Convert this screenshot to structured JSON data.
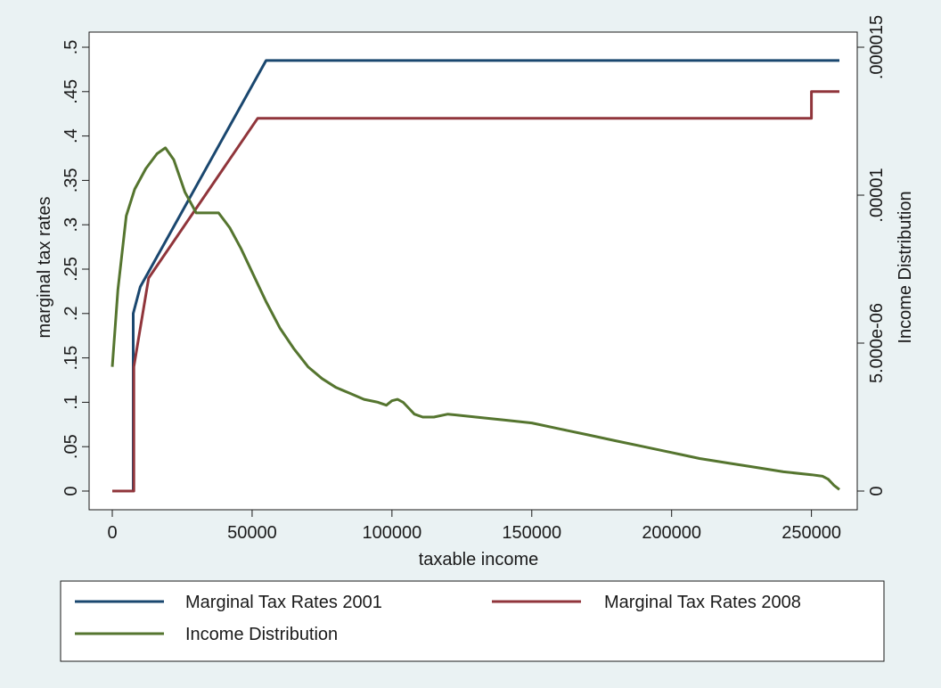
{
  "chart_data": {
    "type": "line",
    "title": "",
    "xlabel": "taxable income",
    "ylabel": "marginal tax rates",
    "y2label": "Income Distribution",
    "xlim": [
      0,
      260000
    ],
    "ylim": [
      0,
      0.5
    ],
    "y2lim": [
      0,
      1.5e-05
    ],
    "x_ticks": [
      0,
      50000,
      100000,
      150000,
      200000,
      250000
    ],
    "x_tick_labels": [
      "0",
      "50000",
      "100000",
      "150000",
      "200000",
      "250000"
    ],
    "y_ticks": [
      0,
      0.05,
      0.1,
      0.15,
      0.2,
      0.25,
      0.3,
      0.35,
      0.4,
      0.45,
      0.5
    ],
    "y_tick_labels": [
      "0",
      ".05",
      ".1",
      ".15",
      ".2",
      ".25",
      ".3",
      ".35",
      ".4",
      ".45",
      ".5"
    ],
    "y2_ticks": [
      0,
      5e-06,
      1e-05,
      1.5e-05
    ],
    "y2_tick_labels": [
      "0",
      "5.000e-06",
      ".00001",
      ".000015"
    ],
    "grid": false,
    "legend_position": "bottom",
    "series": [
      {
        "name": "Marginal Tax Rates 2001",
        "axis": "left",
        "color": "#1a476f",
        "x": [
          0,
          7500,
          7500,
          10000,
          55000,
          260000
        ],
        "y": [
          0,
          0,
          0.2,
          0.23,
          0.485,
          0.485
        ]
      },
      {
        "name": "Marginal Tax Rates 2008",
        "axis": "left",
        "color": "#90353b",
        "x": [
          0,
          7700,
          7700,
          13000,
          52000,
          250000,
          250000,
          260000
        ],
        "y": [
          0,
          0,
          0.14,
          0.24,
          0.42,
          0.42,
          0.45,
          0.45
        ]
      },
      {
        "name": "Income Distribution",
        "axis": "right",
        "color": "#55752f",
        "x": [
          0,
          2000,
          5000,
          8000,
          12000,
          16000,
          19000,
          22000,
          26000,
          30000,
          34000,
          38000,
          42000,
          46000,
          50000,
          55000,
          60000,
          65000,
          70000,
          75000,
          80000,
          85000,
          90000,
          95000,
          98000,
          100000,
          102000,
          104000,
          106000,
          108000,
          111000,
          115000,
          120000,
          130000,
          140000,
          150000,
          160000,
          170000,
          180000,
          190000,
          200000,
          210000,
          220000,
          230000,
          240000,
          250000,
          254000,
          256000,
          258000,
          260000
        ],
        "y": [
          4.2e-06,
          6.8e-06,
          9.3e-06,
          1.02e-05,
          1.09e-05,
          1.14e-05,
          1.16e-05,
          1.12e-05,
          1.01e-05,
          9.4e-06,
          9.4e-06,
          9.4e-06,
          8.9e-06,
          8.2e-06,
          7.4e-06,
          6.4e-06,
          5.5e-06,
          4.8e-06,
          4.2e-06,
          3.8e-06,
          3.5e-06,
          3.3e-06,
          3.1e-06,
          3e-06,
          2.9e-06,
          3.05e-06,
          3.1e-06,
          3e-06,
          2.8e-06,
          2.6e-06,
          2.5e-06,
          2.5e-06,
          2.6e-06,
          2.5e-06,
          2.4e-06,
          2.3e-06,
          2.1e-06,
          1.9e-06,
          1.7e-06,
          1.5e-06,
          1.3e-06,
          1.1e-06,
          9.5e-07,
          8e-07,
          6.5e-07,
          5.5e-07,
          5e-07,
          4e-07,
          2e-07,
          5e-08
        ]
      }
    ]
  }
}
